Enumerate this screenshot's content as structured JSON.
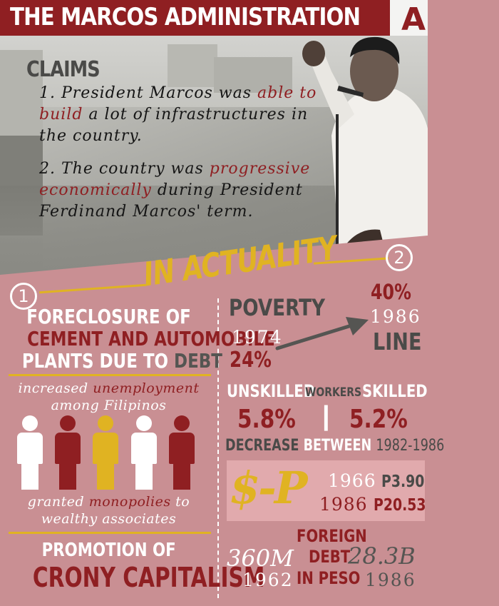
{
  "header": {
    "title": "THE MARCOS ADMINISTRATION",
    "section_label": "A"
  },
  "claims": {
    "heading": "CLAIMS",
    "claim1": {
      "pre": "1. President Marcos was ",
      "highlight": "able to build",
      "post": " a lot of infrastructures in the country."
    },
    "claim2": {
      "pre": "2. The country was ",
      "highlight": "progressive economically",
      "post": " during President Ferdinand Marcos' term."
    }
  },
  "actuality": {
    "heading": "IN ACTUALITY",
    "left_number": "1",
    "right_number": "2"
  },
  "left_panel": {
    "foreclosure": {
      "line1_white": "FORECLOSURE OF",
      "line2_red": "CEMENT AND AUTOMOBILE",
      "line3_white": "PLANTS DUE TO",
      "line3_gray": "DEBT"
    },
    "unemployment": {
      "pre": "increased",
      "highlight": "unemployment",
      "line2": "among Filipinos"
    },
    "monopolies": {
      "w1": "granted",
      "highlight": "monopolies",
      "w2": "to",
      "line2": "wealthy associates"
    },
    "crony": {
      "line1": "PROMOTION OF",
      "line2": "CRONY CAPITALISM"
    }
  },
  "right_panel": {
    "poverty": {
      "label": "POVERTY",
      "line_word": "LINE",
      "year_start": "1974",
      "value_start": "24%",
      "year_end": "1986",
      "value_end": "40%"
    },
    "workers": {
      "unskilled": "UNSKILLED",
      "workers": "WORKERS",
      "skilled": "SKILLED",
      "unskilled_value": "5.8%",
      "skilled_value": "5.2%",
      "separator": "|",
      "decrease": "DECREASE",
      "between": "BETWEEN",
      "range": "1982-1986"
    },
    "exchange": {
      "symbol": "$-P",
      "year1": "1966",
      "value1": "P3.90",
      "year2": "1986",
      "value2": "P20.53"
    },
    "debt": {
      "foreign": "FOREIGN",
      "debt": "DEBT",
      "in_peso": "IN PESO",
      "value_start": "360M",
      "year_start": "1962",
      "value_end": "28.3B",
      "year_end": "1986"
    }
  },
  "colors": {
    "maroon": "#8f1f22",
    "gold": "#e0b322",
    "pink_background": "#c98f93",
    "gray_text": "#555552"
  },
  "icons": {
    "people": [
      "white",
      "maroon",
      "gold",
      "white",
      "maroon"
    ],
    "arrow": "trend-arrow-icon"
  }
}
